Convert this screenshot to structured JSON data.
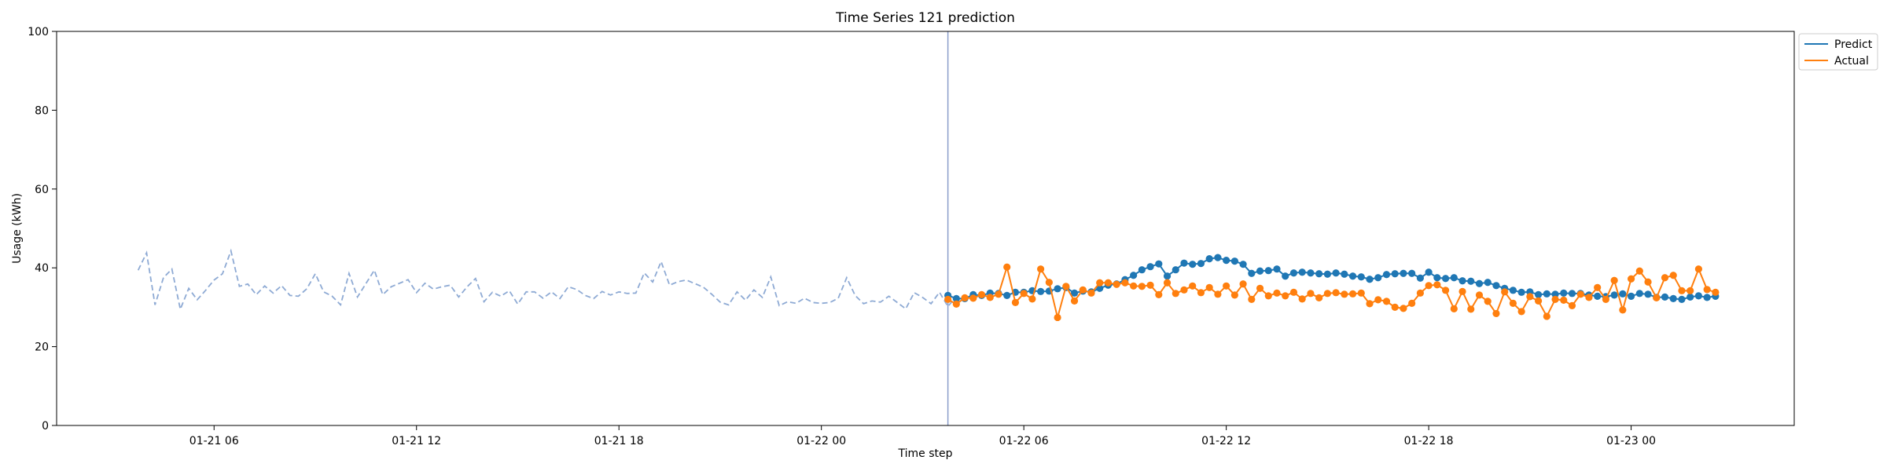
{
  "chart_data": {
    "type": "line",
    "title": "Time Series 121 prediction",
    "xlabel": "Time step",
    "ylabel": "Usage (kWh)",
    "ylim": [
      0,
      100
    ],
    "yticks": [
      0,
      20,
      40,
      60,
      80,
      100
    ],
    "xlim": [
      "2024-01-21 01:20",
      "2024-01-23 04:50"
    ],
    "xticks": [
      {
        "t": "2024-01-21 06:00",
        "label": "01-21 06"
      },
      {
        "t": "2024-01-21 12:00",
        "label": "01-21 12"
      },
      {
        "t": "2024-01-21 18:00",
        "label": "01-21 18"
      },
      {
        "t": "2024-01-22 00:00",
        "label": "01-22 00"
      },
      {
        "t": "2024-01-22 06:00",
        "label": "01-22 06"
      },
      {
        "t": "2024-01-22 12:00",
        "label": "01-22 12"
      },
      {
        "t": "2024-01-22 18:00",
        "label": "01-22 18"
      },
      {
        "t": "2024-01-23 00:00",
        "label": "01-23 00"
      }
    ],
    "step_minutes": 15,
    "history_start": "2024-01-21 03:45",
    "forecast_start": "2024-01-22 03:45",
    "split_line": "2024-01-22 03:45",
    "legend": {
      "placement": "outside-top-right"
    },
    "grid": false,
    "series": [
      {
        "name": "",
        "role": "history",
        "color": "#8eaad4",
        "dashed": true,
        "values": [
          39.4,
          43.8,
          30.6,
          37.5,
          39.7,
          29.5,
          34.8,
          31.9,
          34.3,
          36.9,
          38.5,
          44.3,
          35.3,
          35.9,
          33.2,
          35.4,
          33.6,
          35.5,
          33.0,
          32.8,
          34.7,
          38.5,
          33.9,
          32.8,
          30.6,
          38.6,
          32.6,
          36.0,
          39.4,
          33.2,
          35.2,
          36.1,
          37.0,
          33.7,
          36.1,
          34.6,
          35.2,
          35.6,
          32.6,
          35.2,
          37.3,
          31.4,
          33.8,
          32.8,
          34.2,
          30.8,
          33.9,
          33.9,
          32.3,
          33.9,
          32.2,
          35.2,
          34.5,
          33.0,
          32.2,
          34.0,
          33.1,
          33.9,
          33.5,
          33.6,
          38.7,
          36.4,
          41.6,
          35.6,
          36.5,
          36.9,
          36.0,
          35.1,
          33.3,
          31.3,
          30.6,
          33.9,
          31.8,
          34.4,
          32.5,
          37.7,
          30.4,
          31.4,
          31.0,
          32.3,
          31.2,
          31.0,
          31.2,
          32.3,
          37.5,
          33.0,
          30.9,
          31.6,
          31.3,
          32.8,
          31.2,
          29.6,
          33.7,
          32.5,
          30.9,
          33.8,
          30.2,
          32.7
        ]
      },
      {
        "name": "Predict",
        "role": "forecast",
        "color": "#1f77b4",
        "values": [
          33.0,
          32.2,
          32.2,
          33.2,
          33.0,
          33.6,
          33.5,
          33.0,
          33.8,
          33.8,
          34.2,
          34.0,
          34.1,
          34.7,
          35.0,
          33.6,
          34.1,
          33.9,
          34.8,
          35.6,
          35.9,
          37.0,
          38.1,
          39.5,
          40.3,
          41.0,
          37.9,
          39.5,
          41.2,
          40.9,
          41.1,
          42.3,
          42.6,
          41.9,
          41.7,
          40.9,
          38.6,
          39.2,
          39.3,
          39.7,
          37.9,
          38.7,
          38.9,
          38.7,
          38.5,
          38.4,
          38.7,
          38.4,
          37.9,
          37.7,
          37.1,
          37.5,
          38.3,
          38.5,
          38.6,
          38.6,
          37.4,
          38.9,
          37.5,
          37.3,
          37.5,
          36.7,
          36.6,
          36.0,
          36.3,
          35.5,
          34.8,
          34.3,
          33.8,
          33.9,
          33.2,
          33.4,
          33.3,
          33.6,
          33.5,
          33.5,
          33.1,
          32.8,
          32.7,
          33.1,
          33.4,
          32.8,
          33.5,
          33.3,
          32.5,
          32.6,
          32.2,
          32.0,
          32.6,
          32.9,
          32.5,
          32.8
        ]
      },
      {
        "name": "Actual",
        "role": "forecast",
        "color": "#ff7f0e",
        "values": [
          32.0,
          30.8,
          32.4,
          32.3,
          33.2,
          32.5,
          33.3,
          40.2,
          31.2,
          33.5,
          32.1,
          39.7,
          36.3,
          27.4,
          35.3,
          31.6,
          34.4,
          33.6,
          36.2,
          36.2,
          35.8,
          36.2,
          35.4,
          35.3,
          35.6,
          33.2,
          36.2,
          33.5,
          34.4,
          35.4,
          33.7,
          35.0,
          33.3,
          35.4,
          33.1,
          35.9,
          32.0,
          34.8,
          32.9,
          33.6,
          32.9,
          33.8,
          32.1,
          33.5,
          32.4,
          33.5,
          33.7,
          33.3,
          33.4,
          33.6,
          30.9,
          31.9,
          31.5,
          30.0,
          29.7,
          31.0,
          33.6,
          35.5,
          35.7,
          34.3,
          29.6,
          34.0,
          29.5,
          33.1,
          31.5,
          28.4,
          33.9,
          31.0,
          28.9,
          32.7,
          31.6,
          27.7,
          32.0,
          31.8,
          30.4,
          33.3,
          32.5,
          35.0,
          32.0,
          36.8,
          29.3,
          37.2,
          39.2,
          36.4,
          32.4,
          37.5,
          38.1,
          34.2,
          34.2,
          39.7,
          34.5,
          33.8
        ]
      }
    ]
  }
}
